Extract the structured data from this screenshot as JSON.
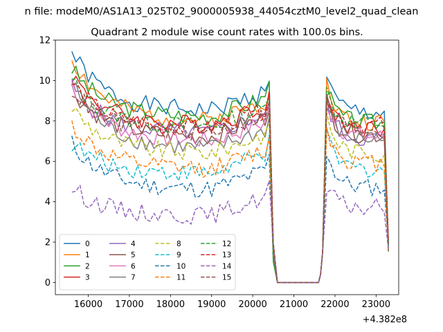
{
  "figure_title": "n file: modeM0/AS1A13_025T02_9000005938_44054cztM0_level2_quad_clean",
  "chart_data": {
    "type": "line",
    "title": "Quadrant 2 module wise count rates with 100.0s bins.",
    "xlabel": "",
    "ylabel": "",
    "x_offset_label": "+4.382e8",
    "xlim": [
      15200,
      23550
    ],
    "ylim": [
      -0.6,
      12
    ],
    "xticks": [
      16000,
      17000,
      18000,
      19000,
      20000,
      21000,
      22000,
      23000
    ],
    "yticks": [
      0,
      2,
      4,
      6,
      8,
      10,
      12
    ],
    "grid": false,
    "legend_placement": "lower-left",
    "legend_columns": 4,
    "x_segments": [
      {
        "start": 15600,
        "end": 20400,
        "step": 100
      },
      {
        "start": 20400,
        "end": 21700,
        "points": [
          20400,
          20500,
          20600,
          20700,
          20800,
          20900,
          21000,
          21100,
          21200,
          21300,
          21400,
          21500,
          21600,
          21650
        ]
      },
      {
        "start": 21700,
        "end": 23300,
        "step": 100
      }
    ],
    "gap_level": 0.0,
    "series": [
      {
        "name": "0",
        "color": "#1f77b4",
        "style": "solid",
        "start": 11.4,
        "base": 8.5,
        "end2": 8.4,
        "peak": 11.1,
        "seed": 1
      },
      {
        "name": "1",
        "color": "#ff7f0e",
        "style": "solid",
        "start": 11.1,
        "base": 8.0,
        "end2": 7.9,
        "peak": 10.9,
        "seed": 2
      },
      {
        "name": "2",
        "color": "#2ca02c",
        "style": "solid",
        "start": 10.6,
        "base": 8.2,
        "end2": 7.9,
        "peak": 10.6,
        "seed": 3
      },
      {
        "name": "3",
        "color": "#d62728",
        "style": "solid",
        "start": 10.3,
        "base": 7.8,
        "end2": 7.6,
        "peak": 10.2,
        "seed": 4
      },
      {
        "name": "4",
        "color": "#9467bd",
        "style": "solid",
        "start": 9.7,
        "base": 7.4,
        "end2": 7.1,
        "peak": 10.1,
        "seed": 5
      },
      {
        "name": "5",
        "color": "#8c564b",
        "style": "solid",
        "start": 9.6,
        "base": 7.2,
        "end2": 7.3,
        "peak": 9.9,
        "seed": 6
      },
      {
        "name": "6",
        "color": "#e377c2",
        "style": "solid",
        "start": 9.8,
        "base": 7.0,
        "end2": 7.2,
        "peak": 10.0,
        "seed": 7
      },
      {
        "name": "7",
        "color": "#7f7f7f",
        "style": "solid",
        "start": 9.9,
        "base": 6.6,
        "end2": 7.1,
        "peak": 9.6,
        "seed": 8
      },
      {
        "name": "8",
        "color": "#bcbd22",
        "style": "dashed",
        "start": 8.7,
        "base": 6.4,
        "end2": 6.4,
        "peak": 9.3,
        "seed": 9
      },
      {
        "name": "9",
        "color": "#17becf",
        "style": "dashed",
        "start": 6.9,
        "base": 5.4,
        "end2": 5.6,
        "peak": 8.1,
        "seed": 10
      },
      {
        "name": "10",
        "color": "#1f77b4",
        "style": "dashed",
        "start": 6.9,
        "base": 4.6,
        "end2": 4.7,
        "peak": 7.5,
        "seed": 11
      },
      {
        "name": "11",
        "color": "#ff7f0e",
        "style": "dashed",
        "start": 7.8,
        "base": 5.6,
        "end2": 5.9,
        "peak": 8.7,
        "seed": 12
      },
      {
        "name": "12",
        "color": "#2ca02c",
        "style": "dashed",
        "start": 10.0,
        "base": 7.7,
        "end2": 7.9,
        "peak": 10.3,
        "seed": 13
      },
      {
        "name": "13",
        "color": "#d62728",
        "style": "dashed",
        "start": 9.9,
        "base": 7.6,
        "end2": 7.8,
        "peak": 10.2,
        "seed": 14
      },
      {
        "name": "14",
        "color": "#9467bd",
        "style": "dashed",
        "start": 4.7,
        "base": 3.3,
        "end2": 3.7,
        "peak": 5.2,
        "seed": 15
      },
      {
        "name": "15",
        "color": "#8c564b",
        "style": "dashed",
        "start": 9.6,
        "base": 7.4,
        "end2": 7.6,
        "peak": 10.0,
        "seed": 16
      }
    ]
  }
}
